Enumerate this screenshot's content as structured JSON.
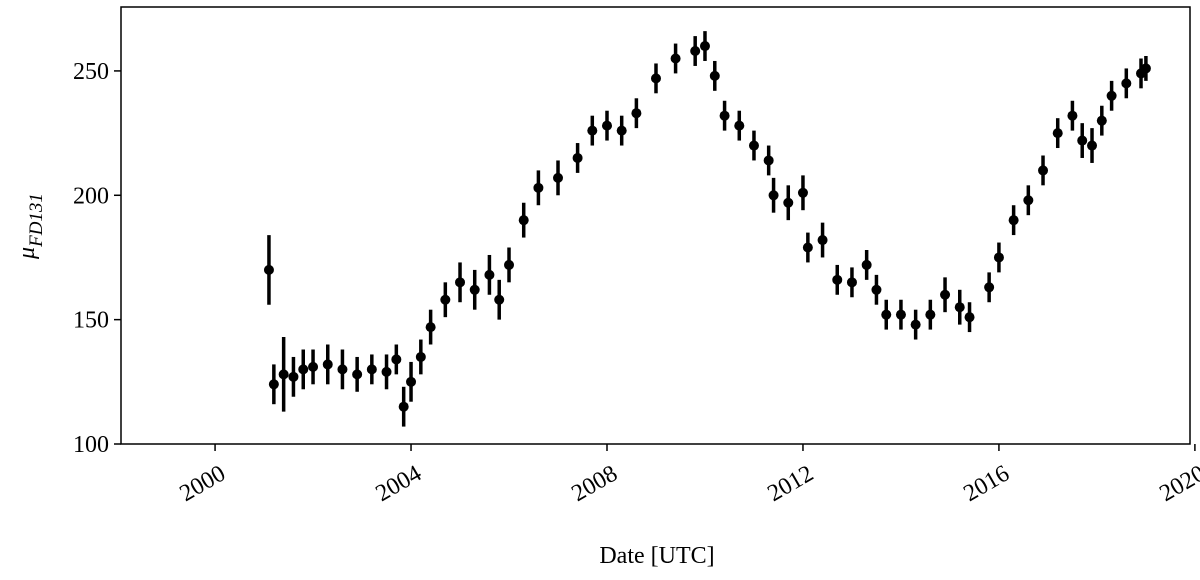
{
  "chart_data": {
    "type": "errorbar",
    "xlabel": "Date [UTC]",
    "ylabel": {
      "symbol": "μ",
      "subscript": "FD131"
    },
    "xlim": [
      1998.08,
      2019.9
    ],
    "xticks": [
      2000,
      2004,
      2008,
      2012,
      2016,
      2020
    ],
    "ylim": [
      100,
      275.7
    ],
    "yticks": [
      100,
      150,
      200,
      250
    ],
    "color": "#000000",
    "x": [
      2001.1,
      2001.2,
      2001.4,
      2001.6,
      2001.8,
      2002.0,
      2002.3,
      2002.6,
      2002.9,
      2003.2,
      2003.5,
      2003.7,
      2003.85,
      2004.0,
      2004.2,
      2004.4,
      2004.7,
      2005.0,
      2005.3,
      2005.6,
      2005.8,
      2006.0,
      2006.3,
      2006.6,
      2007.0,
      2007.4,
      2007.7,
      2008.0,
      2008.3,
      2008.6,
      2009.0,
      2009.4,
      2009.8,
      2010.0,
      2010.2,
      2010.4,
      2010.7,
      2011.0,
      2011.3,
      2011.4,
      2011.7,
      2012.0,
      2012.1,
      2012.4,
      2012.7,
      2013.0,
      2013.3,
      2013.5,
      2013.7,
      2014.0,
      2014.3,
      2014.6,
      2014.9,
      2015.2,
      2015.4,
      2015.8,
      2016.0,
      2016.3,
      2016.6,
      2016.9,
      2017.2,
      2017.5,
      2017.7,
      2017.9,
      2018.1,
      2018.3,
      2018.6,
      2018.9,
      2019.0
    ],
    "values": [
      170,
      124,
      128,
      127,
      130,
      131,
      132,
      130,
      128,
      130,
      129,
      134,
      115,
      125,
      135,
      147,
      158,
      165,
      162,
      168,
      158,
      172,
      190,
      203,
      207,
      215,
      226,
      228,
      226,
      233,
      247,
      255,
      258,
      260,
      248,
      232,
      228,
      220,
      214,
      200,
      197,
      201,
      179,
      182,
      166,
      165,
      172,
      162,
      152,
      152,
      148,
      152,
      160,
      155,
      151,
      163,
      175,
      190,
      198,
      210,
      225,
      232,
      222,
      220,
      230,
      240,
      245,
      249,
      251
    ],
    "errors": [
      14,
      8,
      15,
      8,
      8,
      7,
      8,
      8,
      7,
      6,
      7,
      6,
      8,
      8,
      7,
      7,
      7,
      8,
      8,
      8,
      8,
      7,
      7,
      7,
      7,
      6,
      6,
      6,
      6,
      6,
      6,
      6,
      6,
      6,
      6,
      6,
      6,
      6,
      6,
      7,
      7,
      7,
      6,
      7,
      6,
      6,
      6,
      6,
      6,
      6,
      6,
      6,
      7,
      7,
      6,
      6,
      6,
      6,
      6,
      6,
      6,
      6,
      7,
      7,
      6,
      6,
      6,
      6,
      5
    ]
  }
}
